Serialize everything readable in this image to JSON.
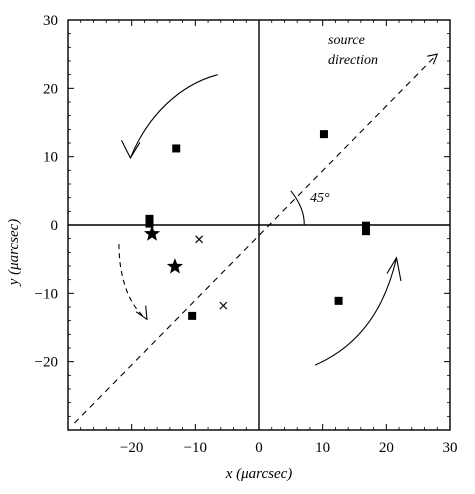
{
  "chart_data": {
    "type": "scatter",
    "title": "",
    "xlabel": "x (μarcsec)",
    "ylabel": "y (μarcsec)",
    "xlim": [
      -30,
      30
    ],
    "ylim": [
      -30,
      30
    ],
    "x_ticks": [
      -20,
      -10,
      0,
      10,
      20,
      30
    ],
    "y_ticks": [
      30,
      20,
      10,
      0,
      -10,
      -20
    ],
    "grid": false,
    "series": [
      {
        "marker": "square",
        "points": [
          {
            "x": -13,
            "y": 11.2
          },
          {
            "x": 10.2,
            "y": 13.3
          },
          {
            "x": -17.2,
            "y": 0.9
          },
          {
            "x": -17.2,
            "y": 0.2
          },
          {
            "x": 16.8,
            "y": -0.1
          },
          {
            "x": 16.8,
            "y": -0.9
          },
          {
            "x": 12.5,
            "y": -11.1
          },
          {
            "x": -10.5,
            "y": -13.3
          }
        ]
      },
      {
        "marker": "star",
        "points": [
          {
            "x": -16.8,
            "y": -1.3
          },
          {
            "x": -13.2,
            "y": -6.1
          }
        ]
      },
      {
        "marker": "cross",
        "points": [
          {
            "x": -9.4,
            "y": -2.1
          },
          {
            "x": -5.6,
            "y": -11.8
          }
        ]
      }
    ],
    "reference_lines": [
      {
        "style": "dashed",
        "from": [
          -29,
          -29
        ],
        "to": [
          28,
          25
        ]
      }
    ],
    "annotations": {
      "source_direction_line1": "source",
      "source_direction_line2": "direction",
      "angle_label": "45°"
    }
  }
}
